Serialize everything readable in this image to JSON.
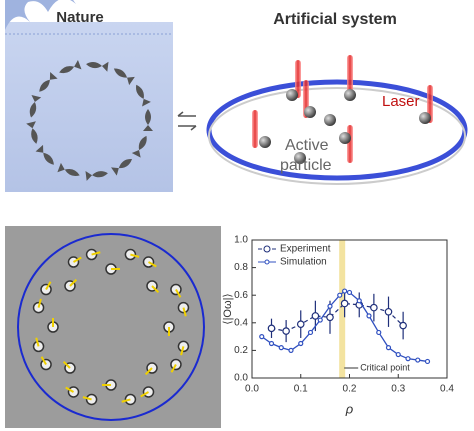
{
  "nature": {
    "title": "Nature"
  },
  "artificial": {
    "title": "Artificial system",
    "laser_label": "Laser",
    "particle_label": [
      "Active",
      "particle"
    ]
  },
  "chart_data": {
    "type": "line",
    "x_label": "ρ",
    "y_label": "⟨|Oω|⟩",
    "xlim": [
      0,
      0.4
    ],
    "xticks": [
      {
        "value": 0,
        "label": "0.0"
      },
      0.1,
      0.2,
      0.3,
      0.4
    ],
    "ylim": [
      0,
      1
    ],
    "yticks": [
      {
        "value": 0,
        "label": "0.0"
      },
      0.2,
      0.4,
      0.6,
      0.8,
      {
        "value": 1,
        "label": "1.0"
      }
    ],
    "legend": "upper left",
    "critical_point": {
      "x": 0.185,
      "label": "Critical point",
      "color": "#f3e3a0"
    },
    "series": [
      {
        "name": "Experiment",
        "color": "#1f2f7a",
        "x": [
          0.04,
          0.07,
          0.1,
          0.13,
          0.16,
          0.19,
          0.22,
          0.25,
          0.28,
          0.31
        ],
        "values": [
          0.36,
          0.34,
          0.39,
          0.45,
          0.44,
          0.54,
          0.53,
          0.51,
          0.48,
          0.38
        ],
        "errors": [
          0.07,
          0.08,
          0.1,
          0.11,
          0.12,
          0.1,
          0.09,
          0.1,
          0.11,
          0.1
        ]
      },
      {
        "name": "Simulation",
        "color": "#3050c0",
        "x": [
          0.02,
          0.04,
          0.06,
          0.08,
          0.1,
          0.12,
          0.14,
          0.16,
          0.18,
          0.19,
          0.2,
          0.22,
          0.24,
          0.26,
          0.28,
          0.3,
          0.32,
          0.34,
          0.36
        ],
        "values": [
          0.3,
          0.25,
          0.22,
          0.2,
          0.25,
          0.33,
          0.42,
          0.52,
          0.6,
          0.63,
          0.62,
          0.56,
          0.45,
          0.33,
          0.22,
          0.17,
          0.14,
          0.13,
          0.12
        ]
      }
    ]
  }
}
